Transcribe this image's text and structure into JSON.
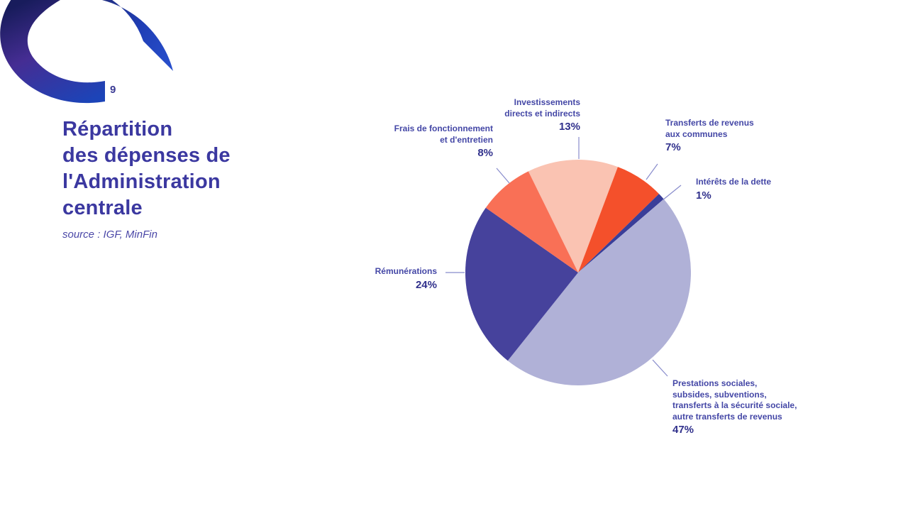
{
  "page_number": "9",
  "header": {
    "title_lines": [
      "Répartition",
      "des dépenses de",
      "l'Administration",
      "centrale"
    ],
    "source": "source : IGF, MinFin"
  },
  "palette": {
    "title": "#3b38a0",
    "label": "#4447a6",
    "value": "#31318c",
    "leader_line": "#888ccc",
    "page_number": "#3a3a94",
    "logo_navy": "#181c5c",
    "logo_purple": "#452d93",
    "logo_blue": "#1c44b8",
    "logo_bright_blue": "#2850cd"
  },
  "chart_data": {
    "type": "pie",
    "title": "Répartition des dépenses de l'Administration centrale",
    "source": "IGF, MinFin",
    "unit": "%",
    "start_angle_deg": -26.2,
    "legend_position": "outside-callouts",
    "segments": [
      {
        "id": "investissements",
        "label_lines": [
          "Investissements",
          "directs et indirects"
        ],
        "value": 13,
        "value_label": "13%",
        "color": "#fac3b2"
      },
      {
        "id": "transferts-communes",
        "label_lines": [
          "Transferts de revenus",
          "aux communes"
        ],
        "value": 7,
        "value_label": "7%",
        "color": "#f4502b"
      },
      {
        "id": "interets-dette",
        "label_lines": [
          "Intérêts de la dette"
        ],
        "value": 1,
        "value_label": "1%",
        "color": "#3a3e99"
      },
      {
        "id": "prestations-sociales",
        "label_lines": [
          "Prestations sociales,",
          "subsides, subventions,",
          "transferts à la sécurité sociale,",
          "autre transferts de revenus"
        ],
        "value": 47,
        "value_label": "47%",
        "color": "#b0b1d7"
      },
      {
        "id": "remunerations",
        "label_lines": [
          "Rémunérations"
        ],
        "value": 24,
        "value_label": "24%",
        "color": "#46429c"
      },
      {
        "id": "frais-fonctionnement",
        "label_lines": [
          "Frais de fonctionnement",
          "et d'entretien"
        ],
        "value": 8,
        "value_label": "8%",
        "color": "#f97056"
      }
    ]
  }
}
